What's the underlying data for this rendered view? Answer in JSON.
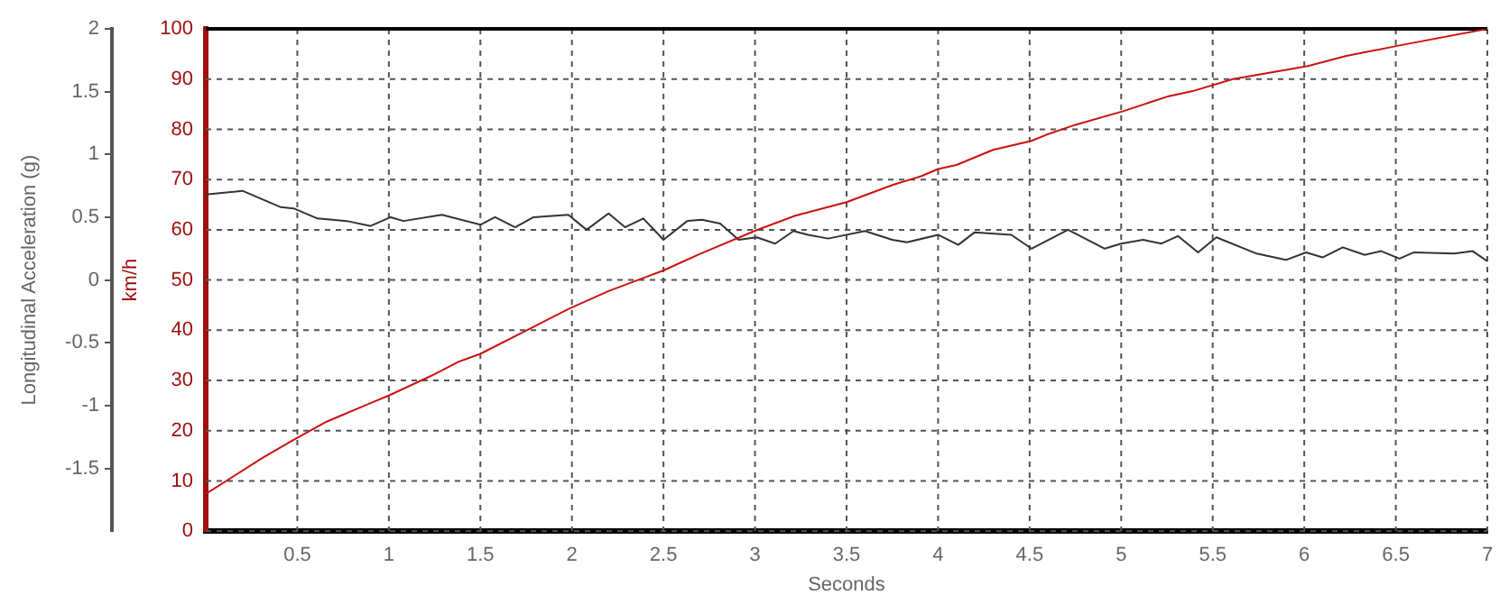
{
  "chart_data": {
    "type": "line",
    "xlabel": "Seconds",
    "ylabel": "km/h",
    "y2label": "Longitudinal Acceleration (g)",
    "xlim": [
      0,
      7
    ],
    "xticks": [
      0.5,
      1,
      1.5,
      2,
      2.5,
      3,
      3.5,
      4,
      4.5,
      5,
      5.5,
      6,
      6.5,
      7
    ],
    "ylim": [
      0,
      100
    ],
    "yticks": [
      0,
      10,
      20,
      30,
      40,
      50,
      60,
      70,
      80,
      90,
      100
    ],
    "y2lim": [
      -2,
      2
    ],
    "y2ticks": [
      -1.5,
      -1,
      -0.5,
      0,
      0.5,
      1,
      1.5,
      2
    ],
    "grid": true,
    "series": [
      {
        "color": "#cc1111",
        "x": [
          0,
          0.31,
          0.48,
          0.66,
          0.9,
          1.0,
          1.23,
          1.38,
          1.5,
          1.78,
          1.98,
          2.2,
          2.39,
          2.5,
          2.7,
          3.0,
          3.22,
          3.5,
          3.75,
          3.91,
          4.0,
          4.1,
          4.3,
          4.51,
          4.59,
          4.75,
          5.01,
          5.26,
          5.39,
          5.61,
          6.02,
          6.23,
          6.52,
          7.0
        ],
        "values": [
          7.4,
          14.6,
          18.2,
          21.8,
          25.5,
          27,
          30.9,
          33.7,
          35.3,
          40.5,
          44.2,
          47.8,
          50.4,
          51.9,
          55.2,
          59.8,
          62.8,
          65.5,
          68.9,
          70.7,
          72.1,
          72.9,
          75.9,
          77.7,
          78.9,
          80.9,
          83.6,
          86.6,
          87.6,
          90,
          92.6,
          94.6,
          96.7,
          100
        ]
      },
      {
        "color": "#333333",
        "axis": "y2",
        "x": [
          0,
          0.2,
          0.41,
          0.48,
          0.61,
          0.77,
          0.9,
          1.01,
          1.08,
          1.29,
          1.5,
          1.58,
          1.69,
          1.79,
          1.98,
          2.08,
          2.2,
          2.29,
          2.39,
          2.5,
          2.63,
          2.71,
          2.81,
          2.91,
          3.01,
          3.11,
          3.21,
          3.29,
          3.4,
          3.6,
          3.75,
          3.83,
          4.0,
          4.11,
          4.2,
          4.4,
          4.51,
          4.71,
          4.91,
          5.0,
          5.12,
          5.22,
          5.31,
          5.42,
          5.52,
          5.74,
          5.9,
          6.01,
          6.1,
          6.21,
          6.33,
          6.42,
          6.52,
          6.6,
          6.82,
          6.92,
          7.0
        ],
        "values": [
          0.68,
          0.71,
          0.58,
          0.57,
          0.49,
          0.47,
          0.43,
          0.5,
          0.47,
          0.52,
          0.44,
          0.5,
          0.42,
          0.5,
          0.52,
          0.4,
          0.53,
          0.42,
          0.49,
          0.32,
          0.47,
          0.48,
          0.45,
          0.32,
          0.34,
          0.29,
          0.39,
          0.36,
          0.33,
          0.39,
          0.32,
          0.3,
          0.36,
          0.28,
          0.38,
          0.36,
          0.25,
          0.4,
          0.25,
          0.29,
          0.32,
          0.29,
          0.35,
          0.22,
          0.34,
          0.21,
          0.16,
          0.22,
          0.18,
          0.26,
          0.2,
          0.23,
          0.17,
          0.22,
          0.21,
          0.23,
          0.15
        ]
      }
    ]
  }
}
